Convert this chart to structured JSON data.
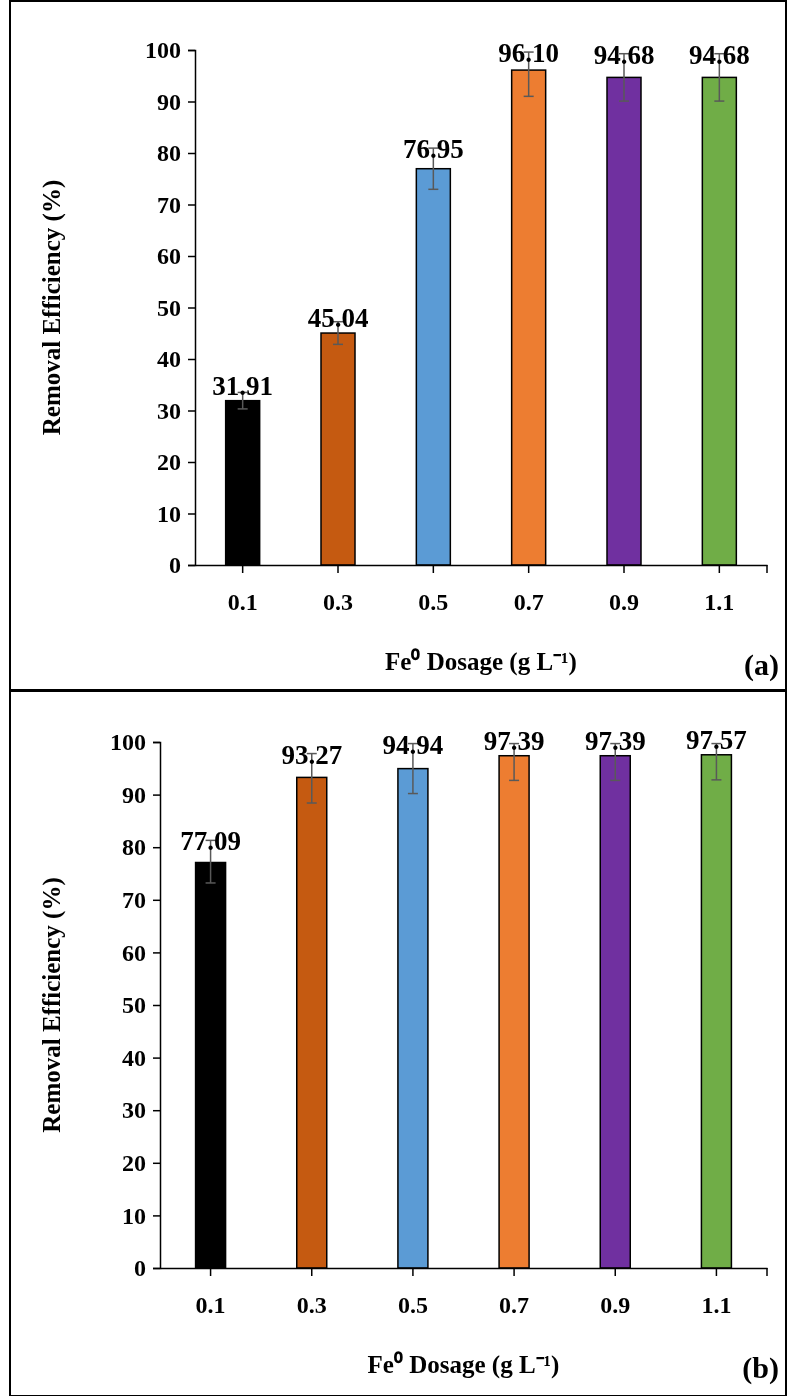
{
  "chart_data": [
    {
      "type": "bar",
      "xlabel": "Fe⁰ Dosage (g L⁻¹)",
      "ylabel": "Removal Efficiency (%)",
      "categories": [
        "0.1",
        "0.3",
        "0.5",
        "0.7",
        "0.9",
        "1.1"
      ],
      "values": [
        31.91,
        45.04,
        76.95,
        96.1,
        94.68,
        94.68
      ],
      "colors": [
        "#000000",
        "#c55a11",
        "#5b9bd5",
        "#ed7d31",
        "#7030a0",
        "#70ad47"
      ],
      "errors": [
        1.6,
        2.2,
        4,
        [
          91.0,
          99.6
        ],
        4.6,
        4.6
      ],
      "data_labels": true,
      "value_labels": [
        "31.91",
        "45.04",
        "76.95",
        "96.10",
        "94.68",
        "94.68"
      ],
      "ylim": [
        0,
        100
      ],
      "yticks": [
        0,
        10,
        20,
        30,
        40,
        50,
        60,
        70,
        80,
        90,
        100
      ],
      "annotations": [
        "(a)"
      ]
    },
    {
      "type": "bar",
      "xlabel": "Fe⁰ Dosage (g L⁻¹)",
      "ylabel": "Removal Efficiency (%)",
      "categories": [
        "0.1",
        "0.3",
        "0.5",
        "0.7",
        "0.9",
        "1.1"
      ],
      "values": [
        77.09,
        93.27,
        94.94,
        97.39,
        97.39,
        97.57
      ],
      "colors": [
        "#000000",
        "#c55a11",
        "#5b9bd5",
        "#ed7d31",
        "#7030a0",
        "#70ad47"
      ],
      "errors": [
        [
          73.2,
          81.3
        ],
        [
          88.4,
          97.8
        ],
        [
          90.2,
          99.7
        ],
        [
          92.7,
          99.7
        ],
        [
          92.7,
          99.7
        ],
        [
          92.8,
          99.7
        ]
      ],
      "data_labels": true,
      "value_labels": [
        "77.09",
        "93.27",
        "94.94",
        "97.39",
        "97.39",
        "97.57"
      ],
      "ylim": [
        0,
        100
      ],
      "yticks": [
        0,
        10,
        20,
        30,
        40,
        50,
        60,
        70,
        80,
        90,
        100
      ],
      "annotations": [
        "(b)"
      ]
    }
  ]
}
